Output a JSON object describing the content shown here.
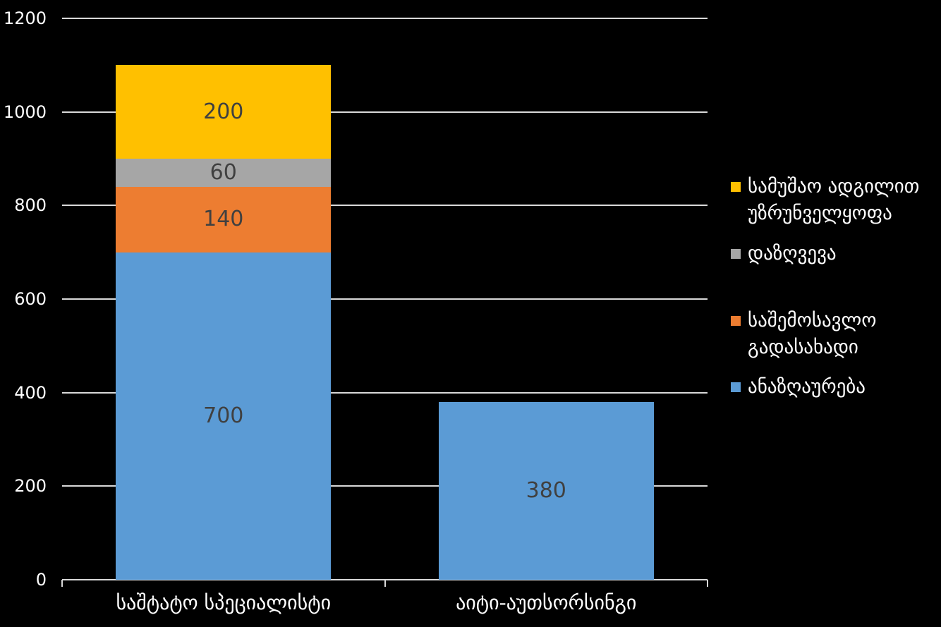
{
  "chart_data": {
    "type": "bar",
    "variant": "stacked-column",
    "title": "",
    "categories": [
      "საშტატო სპეციალისტი",
      "აიტი-აუთსორსინგი"
    ],
    "series": [
      {
        "name": "ანაზღაურება",
        "color": "#5B9BD5",
        "values": [
          700,
          380
        ]
      },
      {
        "name": "საშემოსავლო გადასახადი",
        "color": "#ED7D31",
        "values": [
          140,
          0
        ]
      },
      {
        "name": "დაზღვევა",
        "color": "#A6A6A6",
        "values": [
          60,
          0
        ]
      },
      {
        "name": "სამუშაო ადგილით უზრუნველყოფა",
        "color": "#FFC000",
        "values": [
          200,
          0
        ]
      }
    ],
    "totals": [
      1100,
      380
    ],
    "data_labels_shown": [
      [
        700,
        140,
        60,
        200
      ],
      [
        380
      ]
    ],
    "ylim": [
      0,
      1200
    ],
    "yticks": [
      0,
      200,
      400,
      600,
      800,
      1000,
      1200
    ],
    "grid": true,
    "legend_position": "right",
    "legend": [
      {
        "label": "სამუშაო ადგილით\nუზრუნველყოფა",
        "color": "#FFC000"
      },
      {
        "label": "დაზღვევა",
        "color": "#A6A6A6"
      },
      {
        "label": "საშემოსავლო\nგადასახადი",
        "color": "#ED7D31"
      },
      {
        "label": "ანაზღაურება",
        "color": "#5B9BD5"
      }
    ],
    "colors": {
      "background": "#000000",
      "axis_text": "#FFFFFF",
      "gridline": "#D9D9D9",
      "data_label": "#404040"
    }
  }
}
